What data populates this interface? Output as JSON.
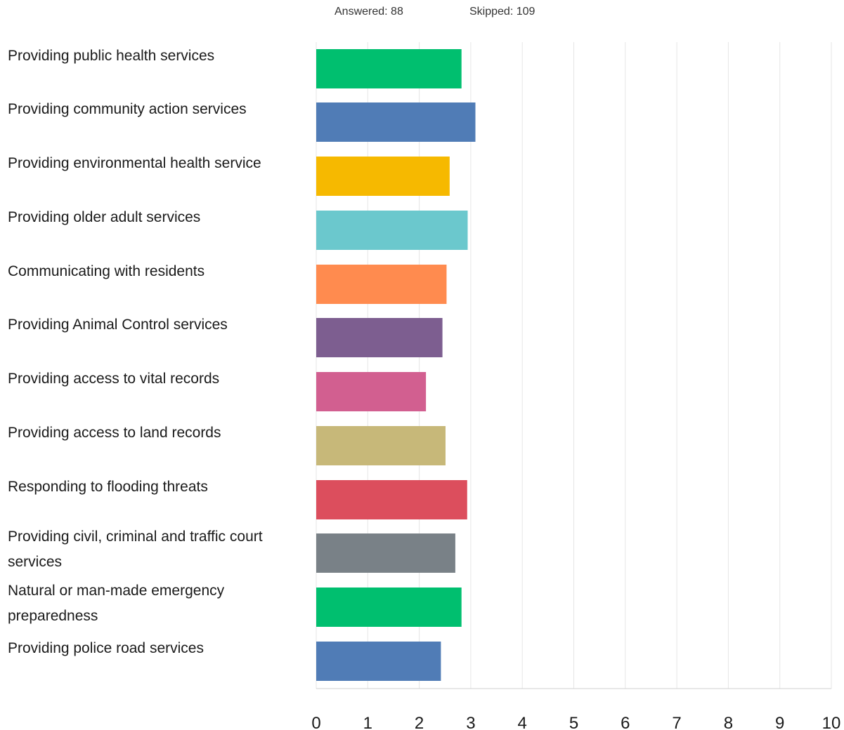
{
  "summary": {
    "answered": "Answered: 88",
    "skipped": "Skipped: 109"
  },
  "chart_data": {
    "type": "bar",
    "orientation": "horizontal",
    "grid": true,
    "xlim": [
      0,
      10
    ],
    "x_ticks": [
      0,
      1,
      2,
      3,
      4,
      5,
      6,
      7,
      8,
      9,
      10
    ],
    "categories": [
      "Providing public health services",
      "Providing community action services",
      "Providing environmental health service",
      "Providing older adult services",
      "Communicating with residents",
      "Providing Animal Control services",
      "Providing access to vital records",
      "Providing access to land records",
      "Responding to flooding threats",
      "Providing civil, criminal and traffic court services",
      "Natural or man-made emergency preparedness",
      "Providing police road services"
    ],
    "values": [
      2.82,
      3.09,
      2.59,
      2.94,
      2.53,
      2.45,
      2.13,
      2.51,
      2.93,
      2.7,
      2.82,
      2.42
    ],
    "colors": [
      "#00bf6f",
      "#507cb6",
      "#f6b900",
      "#6bc8cd",
      "#ff8b4f",
      "#7d5e90",
      "#d25f90",
      "#c7b879",
      "#dc4e5d",
      "#798187",
      "#00bf6f",
      "#507cb6"
    ]
  }
}
